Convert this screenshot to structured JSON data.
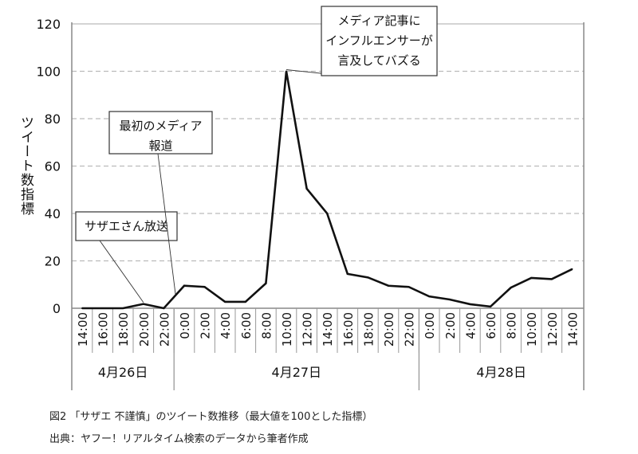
{
  "chart_data": {
    "type": "line",
    "title": "",
    "ylabel": "ツイート数指標",
    "xlabel": "",
    "ylim": [
      0,
      120
    ],
    "yticks": [
      0,
      20,
      40,
      60,
      80,
      100,
      120
    ],
    "grid": "horizontal-dashed",
    "x": [
      "14:00",
      "16:00",
      "18:00",
      "20:00",
      "22:00",
      "0:00",
      "2:00",
      "4:00",
      "6:00",
      "8:00",
      "10:00",
      "12:00",
      "14:00",
      "16:00",
      "18:00",
      "20:00",
      "22:00",
      "0:00",
      "2:00",
      "4:00",
      "6:00",
      "8:00",
      "10:00",
      "12:00",
      "14:00"
    ],
    "values": [
      0,
      0,
      0,
      1.8,
      0,
      9.5,
      9,
      2.7,
      2.7,
      10.5,
      100,
      50.5,
      40,
      14.5,
      13,
      9.5,
      9,
      5,
      3.7,
      1.7,
      0.7,
      8.7,
      12.8,
      12.3,
      16.5
    ],
    "dates": [
      {
        "label": "4月26日",
        "start": 0,
        "end": 4
      },
      {
        "label": "4月27日",
        "start": 5,
        "end": 16
      },
      {
        "label": "4月28日",
        "start": 17,
        "end": 24
      }
    ],
    "annotations": [
      {
        "lines": [
          "サザエさん放送"
        ],
        "point": 3
      },
      {
        "lines": [
          "最初のメディア",
          "報道"
        ],
        "point": 5
      },
      {
        "lines": [
          "メディア記事に",
          "インフルエンサーが",
          "言及してバズる"
        ],
        "point": 10
      }
    ]
  },
  "caption": {
    "figure": "図2 「サザエ 不謹慎」のツイート数推移（最大値を100とした指標）",
    "source": "出典：ヤフー！リアルタイム検索のデータから筆者作成"
  }
}
